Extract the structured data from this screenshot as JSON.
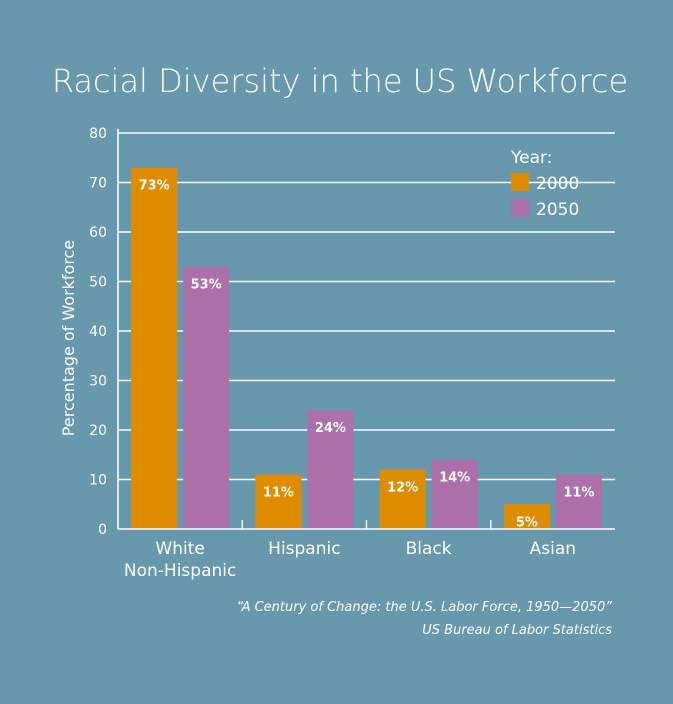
{
  "chart_data": {
    "type": "bar",
    "title": "Racial Diversity in the US Workforce",
    "xlabel": "",
    "ylabel": "Percentage of Workforce",
    "ylim": [
      0,
      80
    ],
    "yticks": [
      0,
      10,
      20,
      30,
      40,
      50,
      60,
      70,
      80
    ],
    "categories": [
      [
        "White",
        "Non-Hispanic"
      ],
      [
        "Hispanic"
      ],
      [
        "Black"
      ],
      [
        "Asian"
      ]
    ],
    "series": [
      {
        "name": "2000",
        "color": "#e08c00",
        "values": [
          73,
          11,
          12,
          5
        ],
        "labels": [
          "73%",
          "11%",
          "12%",
          "5%"
        ]
      },
      {
        "name": "2050",
        "color": "#ad70ab",
        "values": [
          53,
          24,
          14,
          11
        ],
        "labels": [
          "53%",
          "24%",
          "14%",
          "11%"
        ]
      }
    ],
    "legend": {
      "title": "Year:",
      "position": "top-right"
    },
    "grid": true,
    "source": [
      "“A Century of Change: the U.S. Labor Force, 1950—2050”",
      "US Bureau of Labor Statistics"
    ]
  },
  "colors": {
    "background": "#6798ae",
    "grid": "#ffffff",
    "text": "#ffffff"
  }
}
